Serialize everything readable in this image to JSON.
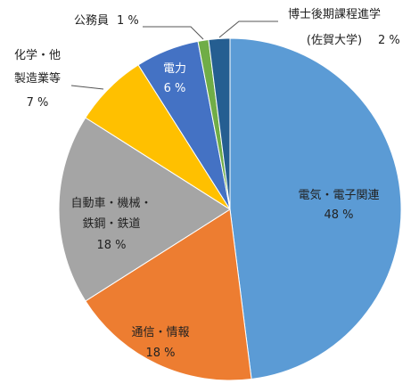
{
  "chart_data": {
    "type": "pie",
    "unit": "%",
    "slices": [
      {
        "label": "電気・電子関連",
        "value": 48,
        "pct_text": "48 %",
        "color": "#5b9bd5"
      },
      {
        "label": "通信・情報",
        "value": 18,
        "pct_text": "18 %",
        "color": "#ed7d31"
      },
      {
        "label": "自動車・機械・鉄鋼・鉄道",
        "label_lines": [
          "自動車・機械・",
          "鉄鋼・鉄道"
        ],
        "value": 18,
        "pct_text": "18 %",
        "color": "#a5a5a5"
      },
      {
        "label": "化学・他製造業等",
        "label_lines": [
          "化学・他",
          "製造業等"
        ],
        "value": 7,
        "pct_text": "7 %",
        "color": "#ffc000"
      },
      {
        "label": "電力",
        "value": 6,
        "pct_text": "6 %",
        "color": "#4472c4"
      },
      {
        "label": "公務員",
        "value": 1,
        "pct_text": "1 %",
        "color": "#70ad47"
      },
      {
        "label": "博士後期課程進学(佐賀大学)",
        "label_lines": [
          "博士後期課程進学",
          "(佐賀大学)"
        ],
        "value": 2,
        "pct_text": "2 %",
        "color": "#255e91"
      }
    ]
  },
  "labels": {
    "denki": {
      "name": "電気・電子関連",
      "pct": "48 %"
    },
    "tsushin": {
      "name": "通信・情報",
      "pct": "18 %"
    },
    "jidosha": {
      "line1": "自動車・機械・",
      "line2": "鉄鋼・鉄道",
      "pct": "18 %"
    },
    "kagaku": {
      "line1": "化学・他",
      "line2": "製造業等",
      "pct": "7 %"
    },
    "denryoku": {
      "name": "電力",
      "pct": "6 %"
    },
    "komuin": {
      "name": "公務員",
      "pct": "1 %"
    },
    "hakase": {
      "line1": "博士後期課程進学",
      "line2": "(佐賀大学)",
      "pct": "2 %"
    }
  }
}
